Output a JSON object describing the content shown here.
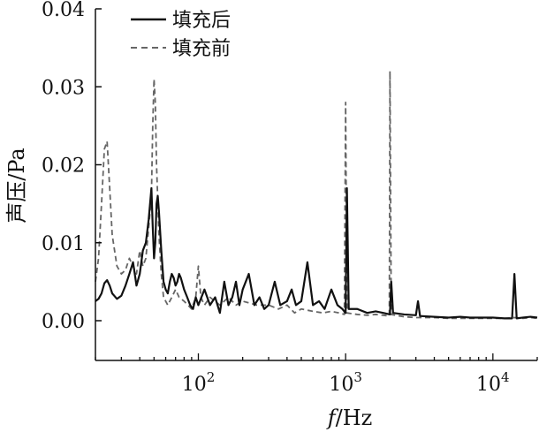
{
  "chart_data": {
    "type": "line",
    "xlabel_italic": "f",
    "xlabel_unit": "/Hz",
    "ylabel": "声压/Pa",
    "x_scale": "log",
    "xlim": [
      20,
      20000
    ],
    "ylim": [
      0,
      0.04
    ],
    "y_ticks": [
      0.0,
      0.01,
      0.02,
      0.03,
      0.04
    ],
    "y_tick_labels": [
      "0.00",
      "0.01",
      "0.02",
      "0.03",
      "0.04"
    ],
    "x_ticks": [
      {
        "value": 100,
        "base": "10",
        "exp": "2"
      },
      {
        "value": 1000,
        "base": "10",
        "exp": "3"
      },
      {
        "value": 10000,
        "base": "10",
        "exp": "4"
      }
    ],
    "grid": false,
    "legend_position": "top-left",
    "series": [
      {
        "name": "填充后",
        "style": "solid",
        "color": "#111111",
        "points": [
          [
            20,
            0.0025
          ],
          [
            21,
            0.0028
          ],
          [
            22,
            0.0035
          ],
          [
            23,
            0.0048
          ],
          [
            24,
            0.0052
          ],
          [
            25,
            0.0045
          ],
          [
            26,
            0.0035
          ],
          [
            28,
            0.0028
          ],
          [
            30,
            0.0032
          ],
          [
            32,
            0.0045
          ],
          [
            34,
            0.006
          ],
          [
            36,
            0.0075
          ],
          [
            37,
            0.006
          ],
          [
            38,
            0.0045
          ],
          [
            40,
            0.006
          ],
          [
            42,
            0.009
          ],
          [
            44,
            0.01
          ],
          [
            46,
            0.013
          ],
          [
            48,
            0.017
          ],
          [
            49,
            0.012
          ],
          [
            50,
            0.008
          ],
          [
            51,
            0.01
          ],
          [
            52,
            0.015
          ],
          [
            53,
            0.016
          ],
          [
            54,
            0.014
          ],
          [
            56,
            0.009
          ],
          [
            58,
            0.005
          ],
          [
            60,
            0.004
          ],
          [
            62,
            0.0035
          ],
          [
            64,
            0.005
          ],
          [
            66,
            0.006
          ],
          [
            68,
            0.0055
          ],
          [
            70,
            0.0045
          ],
          [
            72,
            0.005
          ],
          [
            74,
            0.006
          ],
          [
            76,
            0.0055
          ],
          [
            80,
            0.004
          ],
          [
            84,
            0.003
          ],
          [
            88,
            0.002
          ],
          [
            92,
            0.0015
          ],
          [
            96,
            0.003
          ],
          [
            100,
            0.002
          ],
          [
            110,
            0.004
          ],
          [
            120,
            0.002
          ],
          [
            130,
            0.003
          ],
          [
            140,
            0.001
          ],
          [
            150,
            0.005
          ],
          [
            160,
            0.002
          ],
          [
            170,
            0.003
          ],
          [
            180,
            0.005
          ],
          [
            190,
            0.002
          ],
          [
            200,
            0.004
          ],
          [
            220,
            0.006
          ],
          [
            240,
            0.002
          ],
          [
            260,
            0.003
          ],
          [
            280,
            0.0015
          ],
          [
            300,
            0.002
          ],
          [
            330,
            0.005
          ],
          [
            360,
            0.002
          ],
          [
            400,
            0.0025
          ],
          [
            430,
            0.004
          ],
          [
            460,
            0.002
          ],
          [
            500,
            0.0025
          ],
          [
            550,
            0.0075
          ],
          [
            600,
            0.002
          ],
          [
            660,
            0.0025
          ],
          [
            720,
            0.0015
          ],
          [
            800,
            0.004
          ],
          [
            880,
            0.002
          ],
          [
            950,
            0.0015
          ],
          [
            1000,
            0.001
          ],
          [
            1020,
            0.017
          ],
          [
            1050,
            0.0015
          ],
          [
            1200,
            0.0015
          ],
          [
            1400,
            0.001
          ],
          [
            1600,
            0.0012
          ],
          [
            1800,
            0.001
          ],
          [
            2000,
            0.0008
          ],
          [
            2040,
            0.005
          ],
          [
            2100,
            0.001
          ],
          [
            2500,
            0.0008
          ],
          [
            3000,
            0.0007
          ],
          [
            3100,
            0.0025
          ],
          [
            3200,
            0.0006
          ],
          [
            4000,
            0.0005
          ],
          [
            5000,
            0.0004
          ],
          [
            6000,
            0.0005
          ],
          [
            7000,
            0.0004
          ],
          [
            8000,
            0.0004
          ],
          [
            10000,
            0.0004
          ],
          [
            12000,
            0.0003
          ],
          [
            13500,
            0.0003
          ],
          [
            14000,
            0.006
          ],
          [
            14500,
            0.0003
          ],
          [
            16000,
            0.0004
          ],
          [
            18000,
            0.0005
          ],
          [
            20000,
            0.0004
          ]
        ]
      },
      {
        "name": "填充前",
        "style": "dashed",
        "color": "#666666",
        "points": [
          [
            20,
            0.005
          ],
          [
            21,
            0.008
          ],
          [
            22,
            0.015
          ],
          [
            23,
            0.022
          ],
          [
            24,
            0.023
          ],
          [
            25,
            0.017
          ],
          [
            26,
            0.011
          ],
          [
            28,
            0.007
          ],
          [
            30,
            0.006
          ],
          [
            32,
            0.0065
          ],
          [
            34,
            0.008
          ],
          [
            36,
            0.007
          ],
          [
            38,
            0.006
          ],
          [
            40,
            0.009
          ],
          [
            42,
            0.007
          ],
          [
            44,
            0.008
          ],
          [
            46,
            0.012
          ],
          [
            48,
            0.016
          ],
          [
            49,
            0.025
          ],
          [
            50,
            0.031
          ],
          [
            51,
            0.028
          ],
          [
            52,
            0.02
          ],
          [
            54,
            0.011
          ],
          [
            56,
            0.006
          ],
          [
            58,
            0.003
          ],
          [
            62,
            0.002
          ],
          [
            66,
            0.003
          ],
          [
            70,
            0.004
          ],
          [
            74,
            0.003
          ],
          [
            80,
            0.0025
          ],
          [
            85,
            0.002
          ],
          [
            90,
            0.0015
          ],
          [
            96,
            0.003
          ],
          [
            100,
            0.007
          ],
          [
            104,
            0.003
          ],
          [
            110,
            0.002
          ],
          [
            120,
            0.003
          ],
          [
            140,
            0.002
          ],
          [
            160,
            0.003
          ],
          [
            180,
            0.002
          ],
          [
            200,
            0.0025
          ],
          [
            250,
            0.002
          ],
          [
            300,
            0.002
          ],
          [
            350,
            0.0015
          ],
          [
            400,
            0.002
          ],
          [
            450,
            0.001
          ],
          [
            500,
            0.0015
          ],
          [
            600,
            0.0012
          ],
          [
            700,
            0.001
          ],
          [
            800,
            0.0012
          ],
          [
            900,
            0.001
          ],
          [
            980,
            0.0008
          ],
          [
            1000,
            0.028
          ],
          [
            1020,
            0.001
          ],
          [
            1200,
            0.0008
          ],
          [
            1400,
            0.0007
          ],
          [
            1600,
            0.0008
          ],
          [
            1800,
            0.0007
          ],
          [
            1980,
            0.0006
          ],
          [
            2000,
            0.032
          ],
          [
            2040,
            0.0008
          ],
          [
            2500,
            0.0005
          ],
          [
            3000,
            0.0004
          ],
          [
            4000,
            0.0004
          ],
          [
            5000,
            0.0003
          ],
          [
            6000,
            0.0003
          ],
          [
            8000,
            0.0003
          ],
          [
            10000,
            0.0003
          ],
          [
            12000,
            0.0003
          ],
          [
            14000,
            0.0004
          ],
          [
            16000,
            0.0003
          ],
          [
            18000,
            0.0004
          ],
          [
            20000,
            0.0003
          ]
        ]
      }
    ]
  }
}
